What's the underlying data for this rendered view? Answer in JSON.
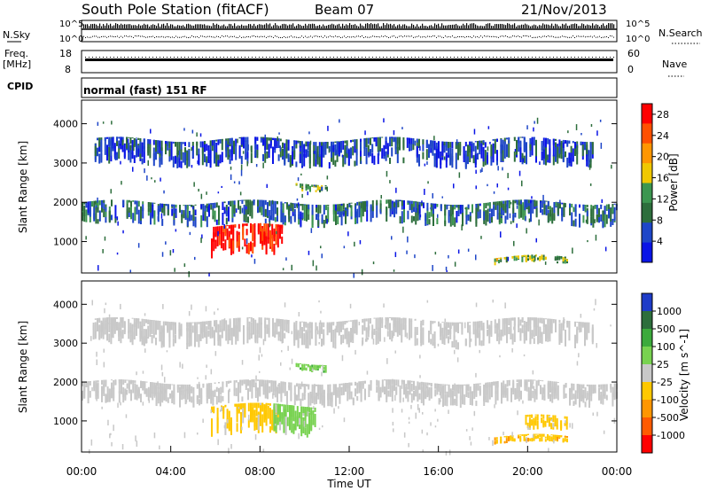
{
  "header": {
    "station": "South Pole Station (fitACF)",
    "beam": "Beam 07",
    "date": "21/Nov/2013"
  },
  "top_panels": {
    "nsky_label": "N.Sky",
    "nsky_ticks": [
      "10^5",
      "10^0"
    ],
    "nsearch_label": "N.Search",
    "freq_label": "Freq.",
    "freq_unit": "[MHz]",
    "freq_ticks": [
      "18",
      "8"
    ],
    "nave_label": "Nave",
    "nave_ticks": [
      "60",
      "0"
    ],
    "cpid_label": "CPID",
    "cpid_text": "normal (fast) 151 RF"
  },
  "colors": {
    "power_scale": [
      "#0a14e6",
      "#1e46c8",
      "#2d6e3c",
      "#3c9650",
      "#f0c800",
      "#ff9600",
      "#ff5000",
      "#ff0000"
    ],
    "velocity_scale": [
      "#1e3cc8",
      "#2d6e3c",
      "#3caa3c",
      "#78d250",
      "#c8c8c8",
      "#ffc800",
      "#ff9600",
      "#ff5a00",
      "#ff0000"
    ]
  },
  "chart_data": [
    {
      "type": "heatmap",
      "panel": "power",
      "ylabel": "Slant Range [km]",
      "yticks": [
        "1000",
        "2000",
        "3000",
        "4000"
      ],
      "ylim": [
        200,
        4600
      ],
      "xlim": [
        "00:00",
        "24:00"
      ],
      "colorbar_label": "Power [dB]",
      "colorbar_ticks": [
        "4",
        "8",
        "12",
        "16",
        "20",
        "24",
        "28"
      ],
      "colorbar_range": [
        0,
        30
      ],
      "echo_regions": [
        {
          "start_hr": 0.0,
          "end_hr": 24.0,
          "range_km": [
            1400,
            2000
          ],
          "power_db": 8
        },
        {
          "start_hr": 0.5,
          "end_hr": 23.0,
          "range_km": [
            2900,
            3600
          ],
          "power_db": 6
        },
        {
          "start_hr": 5.8,
          "end_hr": 9.0,
          "range_km": [
            600,
            1400
          ],
          "power_db": 28
        },
        {
          "start_hr": 9.6,
          "end_hr": 11.0,
          "range_km": [
            2300,
            2500
          ],
          "power_db": 12
        },
        {
          "start_hr": 18.5,
          "end_hr": 21.8,
          "range_km": [
            400,
            600
          ],
          "power_db": 14
        }
      ]
    },
    {
      "type": "heatmap",
      "panel": "velocity",
      "ylabel": "Slant Range [km]",
      "yticks": [
        "1000",
        "2000",
        "3000",
        "4000"
      ],
      "ylim": [
        200,
        4600
      ],
      "xlabel": "Time UT",
      "xticks": [
        "00:00",
        "04:00",
        "08:00",
        "12:00",
        "16:00",
        "20:00",
        "00:00"
      ],
      "colorbar_label": "Velocity [m s^-1]",
      "colorbar_ticks": [
        "1000",
        "500",
        "100",
        "25",
        "-25",
        "-100",
        "-500",
        "-1000"
      ],
      "echo_regions": [
        {
          "start_hr": 0.0,
          "end_hr": 24.0,
          "range_km": [
            1400,
            2000
          ],
          "velocity": 0
        },
        {
          "start_hr": 0.5,
          "end_hr": 23.0,
          "range_km": [
            2900,
            3600
          ],
          "velocity": 0
        },
        {
          "start_hr": 5.8,
          "end_hr": 9.0,
          "range_km": [
            600,
            1400
          ],
          "velocity": -200
        },
        {
          "start_hr": 8.6,
          "end_hr": 10.5,
          "range_km": [
            600,
            1400
          ],
          "velocity": 200
        },
        {
          "start_hr": 9.6,
          "end_hr": 11.0,
          "range_km": [
            2300,
            2500
          ],
          "velocity": 300
        },
        {
          "start_hr": 18.5,
          "end_hr": 21.8,
          "range_km": [
            400,
            600
          ],
          "velocity": -300
        },
        {
          "start_hr": 19.8,
          "end_hr": 21.8,
          "range_km": [
            700,
            1100
          ],
          "velocity": -200
        }
      ]
    }
  ]
}
